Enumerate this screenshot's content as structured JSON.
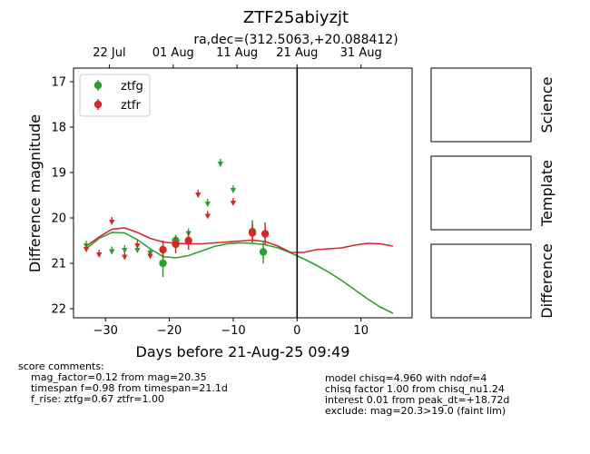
{
  "chart_data": {
    "type": "scatter",
    "title": "ZTF25abiyzjt",
    "subtitle": "ra,dec=(312.5063,+20.088412)",
    "xlabel": "Days before 21-Aug-25 09:49",
    "ylabel": "Difference magnitude",
    "xlim": [
      -35,
      18
    ],
    "ylim": [
      22.2,
      16.7
    ],
    "y_inverted": true,
    "x_ticks": [
      -30,
      -20,
      -10,
      0,
      10
    ],
    "y_ticks": [
      17,
      18,
      19,
      20,
      21,
      22
    ],
    "top_axis_ticks": [
      {
        "x": -29.4,
        "label": "22 Jul"
      },
      {
        "x": -19.4,
        "label": "01 Aug"
      },
      {
        "x": -9.4,
        "label": "11 Aug"
      },
      {
        "x": 0.0,
        "label": "21 Aug"
      },
      {
        "x": 10.0,
        "label": "31 Aug"
      }
    ],
    "reference_line_x": 0,
    "legend_position": "upper-left",
    "series": [
      {
        "name": "ztfg",
        "color": "#2ca02c",
        "detections": [
          {
            "x": -21.0,
            "y": 21.0,
            "err": 0.3
          },
          {
            "x": -19.0,
            "y": 20.5,
            "err": 0.12
          },
          {
            "x": -7.0,
            "y": 20.3,
            "err": 0.25
          },
          {
            "x": -5.3,
            "y": 20.75,
            "err": 0.25
          }
        ],
        "upper_limits": [
          {
            "x": -33.0,
            "y": 20.62
          },
          {
            "x": -29.0,
            "y": 20.75
          },
          {
            "x": -27.0,
            "y": 20.72
          },
          {
            "x": -25.0,
            "y": 20.72
          },
          {
            "x": -23.0,
            "y": 20.78
          },
          {
            "x": -17.0,
            "y": 20.35
          },
          {
            "x": -14.0,
            "y": 19.7
          },
          {
            "x": -12.0,
            "y": 18.82
          },
          {
            "x": -10.0,
            "y": 19.4
          }
        ],
        "model_curve": {
          "x": [
            -33,
            -31,
            -29,
            -27,
            -25,
            -23,
            -21,
            -19,
            -17,
            -15,
            -13,
            -11,
            -9,
            -7,
            -5,
            -3,
            -1,
            1,
            3,
            5,
            7,
            9,
            11,
            13,
            15
          ],
          "y": [
            20.68,
            20.45,
            20.32,
            20.33,
            20.48,
            20.68,
            20.85,
            20.88,
            20.83,
            20.73,
            20.63,
            20.57,
            20.55,
            20.56,
            20.59,
            20.66,
            20.77,
            20.9,
            21.04,
            21.2,
            21.38,
            21.58,
            21.78,
            21.96,
            22.1
          ]
        }
      },
      {
        "name": "ztfr",
        "color": "#d62728",
        "detections": [
          {
            "x": -21.0,
            "y": 20.7,
            "err": 0.2
          },
          {
            "x": -19.0,
            "y": 20.58,
            "err": 0.2
          },
          {
            "x": -17.0,
            "y": 20.5,
            "err": 0.2
          },
          {
            "x": -7.0,
            "y": 20.33,
            "err": 0.2
          },
          {
            "x": -5.0,
            "y": 20.35,
            "err": 0.25
          }
        ],
        "upper_limits": [
          {
            "x": -33.0,
            "y": 20.7
          },
          {
            "x": -31.0,
            "y": 20.82
          },
          {
            "x": -29.0,
            "y": 20.1
          },
          {
            "x": -27.0,
            "y": 20.87
          },
          {
            "x": -25.0,
            "y": 20.62
          },
          {
            "x": -23.0,
            "y": 20.85
          },
          {
            "x": -15.5,
            "y": 19.5
          },
          {
            "x": -14.0,
            "y": 19.97
          },
          {
            "x": -10.0,
            "y": 19.68
          }
        ],
        "model_curve": {
          "x": [
            -33,
            -31,
            -29,
            -27,
            -25,
            -23,
            -21,
            -19,
            -17,
            -15,
            -13,
            -11,
            -9,
            -7,
            -5,
            -3,
            -1,
            1,
            3,
            5,
            7,
            9,
            11,
            13,
            15
          ],
          "y": [
            20.62,
            20.42,
            20.25,
            20.22,
            20.32,
            20.45,
            20.53,
            20.56,
            20.57,
            20.57,
            20.55,
            20.53,
            20.51,
            20.49,
            20.52,
            20.62,
            20.76,
            20.76,
            20.7,
            20.68,
            20.66,
            20.6,
            20.56,
            20.57,
            20.62
          ]
        }
      }
    ]
  },
  "side_panels": [
    "Science",
    "Template",
    "Difference"
  ],
  "comments_left": [
    "score comments:",
    "    mag_factor=0.12 from mag=20.35",
    "    timespan f=0.98 from timespan=21.1d",
    "    f_rise: ztfg=0.67 ztfr=1.00"
  ],
  "comments_right": [
    "model chisq=4.960 with ndof=4",
    "chisq factor 1.00 from chisq_nu1.24",
    "interest 0.01 from peak_dt=+18.72d",
    "exclude: mag=20.3>19.0 (faint lim)"
  ]
}
